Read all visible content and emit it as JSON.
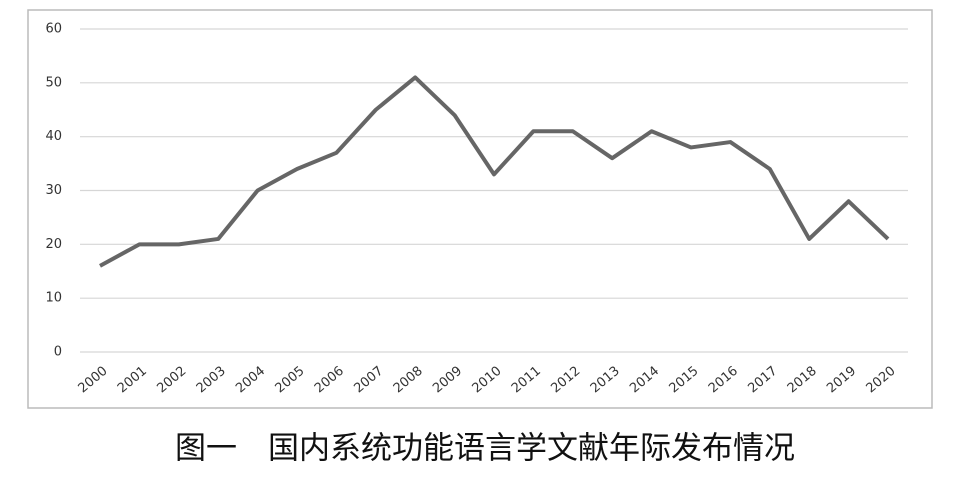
{
  "chart_data": {
    "type": "line",
    "title": "图一　国内系统功能语言学文献年际发布情况",
    "categories": [
      "2000",
      "2001",
      "2002",
      "2003",
      "2004",
      "2005",
      "2006",
      "2007",
      "2008",
      "2009",
      "2010",
      "2011",
      "2012",
      "2013",
      "2014",
      "2015",
      "2016",
      "2017",
      "2018",
      "2019",
      "2020"
    ],
    "values": [
      16,
      20,
      20,
      21,
      30,
      34,
      37,
      45,
      51,
      44,
      33,
      41,
      41,
      36,
      41,
      38,
      39,
      34,
      21,
      28,
      21
    ],
    "color": "#666666",
    "ylim": [
      0,
      60
    ],
    "yticks": [
      0,
      10,
      20,
      30,
      40,
      50,
      60
    ],
    "grid": true
  }
}
